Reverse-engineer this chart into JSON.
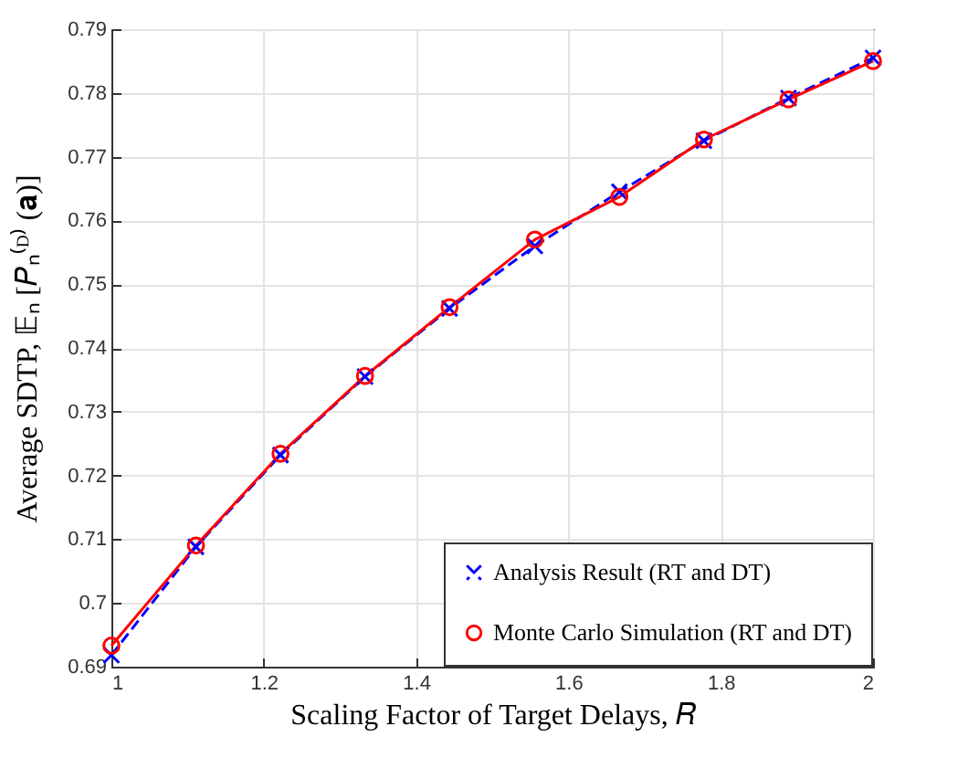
{
  "chart_data": {
    "type": "line",
    "xlabel": "Scaling Factor of Target Delays, 𝑅",
    "ylabel": "Average SDTP, 𝔼ₙ [𝑃ₙ⁽ᴰ⁾ (𝐚)]",
    "x": [
      1,
      1.111,
      1.222,
      1.333,
      1.444,
      1.556,
      1.667,
      1.778,
      1.889,
      2
    ],
    "series": [
      {
        "name": "Analysis Result (RT and DT)",
        "color": "#0000ff",
        "marker": "cross",
        "line_style": "dashed",
        "values": [
          0.6918,
          0.7088,
          0.7232,
          0.7355,
          0.7462,
          0.756,
          0.7645,
          0.7725,
          0.7792,
          0.7855
        ]
      },
      {
        "name": "Monte Carlo Simulation (RT and DT)",
        "color": "#ff0000",
        "marker": "circle",
        "line_style": "solid",
        "values": [
          0.6933,
          0.709,
          0.7234,
          0.7356,
          0.7464,
          0.757,
          0.7637,
          0.7727,
          0.779,
          0.785
        ]
      }
    ],
    "xlim": [
      1,
      2
    ],
    "xticks": [
      1,
      1.2,
      1.4,
      1.6,
      1.8,
      2
    ],
    "ylim": [
      0.69,
      0.79
    ],
    "yticks": [
      0.69,
      0.7,
      0.71,
      0.72,
      0.73,
      0.74,
      0.75,
      0.76,
      0.77,
      0.78,
      0.79
    ],
    "grid": true,
    "legend": "bottom right"
  }
}
